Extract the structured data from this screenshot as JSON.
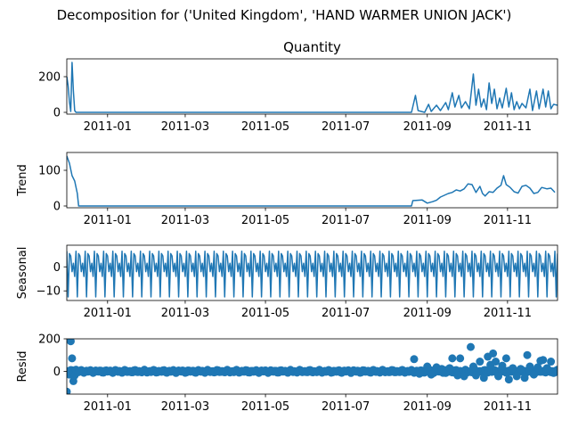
{
  "chart_data": {
    "type": "line",
    "suptitle": "Decomposition for ('United Kingdom', 'HAND WARMER UNION JACK')",
    "series_color": "#1f77b4",
    "x_range": [
      "2010-12-01",
      "2011-12-09"
    ],
    "x_ticks": [
      "2011-01",
      "2011-03",
      "2011-05",
      "2011-07",
      "2011-09",
      "2011-11"
    ],
    "panels": [
      {
        "id": "observed",
        "title": "Quantity",
        "ylabel": "",
        "kind": "line",
        "ylim": [
          -10,
          300
        ],
        "yticks": [
          0,
          200
        ],
        "points": [
          [
            "2010-12-01",
            200
          ],
          [
            "2010-12-02",
            150
          ],
          [
            "2010-12-03",
            60
          ],
          [
            "2010-12-04",
            5
          ],
          [
            "2010-12-05",
            280
          ],
          [
            "2010-12-06",
            120
          ],
          [
            "2010-12-07",
            10
          ],
          [
            "2010-12-08",
            0
          ],
          [
            "2010-12-15",
            0
          ],
          [
            "2011-01-01",
            0
          ],
          [
            "2011-03-01",
            0
          ],
          [
            "2011-05-01",
            0
          ],
          [
            "2011-07-01",
            0
          ],
          [
            "2011-08-20",
            0
          ],
          [
            "2011-08-23",
            95
          ],
          [
            "2011-08-25",
            10
          ],
          [
            "2011-08-30",
            0
          ],
          [
            "2011-09-02",
            45
          ],
          [
            "2011-09-04",
            5
          ],
          [
            "2011-09-08",
            40
          ],
          [
            "2011-09-11",
            10
          ],
          [
            "2011-09-15",
            55
          ],
          [
            "2011-09-17",
            15
          ],
          [
            "2011-09-20",
            110
          ],
          [
            "2011-09-22",
            30
          ],
          [
            "2011-09-25",
            95
          ],
          [
            "2011-09-27",
            25
          ],
          [
            "2011-09-30",
            60
          ],
          [
            "2011-10-03",
            20
          ],
          [
            "2011-10-06",
            215
          ],
          [
            "2011-10-08",
            40
          ],
          [
            "2011-10-10",
            130
          ],
          [
            "2011-10-12",
            30
          ],
          [
            "2011-10-14",
            75
          ],
          [
            "2011-10-16",
            15
          ],
          [
            "2011-10-18",
            165
          ],
          [
            "2011-10-20",
            50
          ],
          [
            "2011-10-22",
            130
          ],
          [
            "2011-10-24",
            20
          ],
          [
            "2011-10-26",
            80
          ],
          [
            "2011-10-28",
            25
          ],
          [
            "2011-10-31",
            135
          ],
          [
            "2011-11-02",
            30
          ],
          [
            "2011-11-04",
            110
          ],
          [
            "2011-11-06",
            15
          ],
          [
            "2011-11-08",
            60
          ],
          [
            "2011-11-10",
            20
          ],
          [
            "2011-11-12",
            50
          ],
          [
            "2011-11-15",
            25
          ],
          [
            "2011-11-18",
            130
          ],
          [
            "2011-11-20",
            10
          ],
          [
            "2011-11-23",
            120
          ],
          [
            "2011-11-25",
            20
          ],
          [
            "2011-11-28",
            130
          ],
          [
            "2011-11-30",
            30
          ],
          [
            "2011-12-02",
            120
          ],
          [
            "2011-12-04",
            20
          ],
          [
            "2011-12-06",
            45
          ],
          [
            "2011-12-09",
            40
          ]
        ]
      },
      {
        "id": "trend",
        "title": "",
        "ylabel": "Trend",
        "kind": "line",
        "ylim": [
          -5,
          150
        ],
        "yticks": [
          0,
          100
        ],
        "points": [
          [
            "2010-12-01",
            140
          ],
          [
            "2010-12-03",
            120
          ],
          [
            "2010-12-05",
            85
          ],
          [
            "2010-12-07",
            70
          ],
          [
            "2010-12-09",
            35
          ],
          [
            "2010-12-10",
            0
          ],
          [
            "2011-01-01",
            0
          ],
          [
            "2011-05-01",
            0
          ],
          [
            "2011-08-20",
            0
          ],
          [
            "2011-08-21",
            15
          ],
          [
            "2011-08-28",
            17
          ],
          [
            "2011-09-01",
            8
          ],
          [
            "2011-09-05",
            12
          ],
          [
            "2011-09-08",
            16
          ],
          [
            "2011-09-11",
            25
          ],
          [
            "2011-09-14",
            30
          ],
          [
            "2011-09-17",
            35
          ],
          [
            "2011-09-20",
            38
          ],
          [
            "2011-09-23",
            45
          ],
          [
            "2011-09-26",
            42
          ],
          [
            "2011-09-29",
            48
          ],
          [
            "2011-10-02",
            62
          ],
          [
            "2011-10-05",
            60
          ],
          [
            "2011-10-08",
            38
          ],
          [
            "2011-10-11",
            55
          ],
          [
            "2011-10-13",
            35
          ],
          [
            "2011-10-15",
            28
          ],
          [
            "2011-10-18",
            40
          ],
          [
            "2011-10-21",
            38
          ],
          [
            "2011-10-24",
            50
          ],
          [
            "2011-10-27",
            58
          ],
          [
            "2011-10-29",
            85
          ],
          [
            "2011-10-31",
            60
          ],
          [
            "2011-11-03",
            52
          ],
          [
            "2011-11-06",
            40
          ],
          [
            "2011-11-09",
            36
          ],
          [
            "2011-11-12",
            55
          ],
          [
            "2011-11-15",
            58
          ],
          [
            "2011-11-18",
            50
          ],
          [
            "2011-11-21",
            35
          ],
          [
            "2011-11-24",
            38
          ],
          [
            "2011-11-27",
            52
          ],
          [
            "2011-12-01",
            48
          ],
          [
            "2011-12-04",
            50
          ],
          [
            "2011-12-07",
            38
          ]
        ]
      },
      {
        "id": "seasonal",
        "title": "",
        "ylabel": "Seasonal",
        "kind": "periodic",
        "ylim": [
          -14,
          9
        ],
        "yticks": [
          -10,
          0
        ],
        "period_days": 7,
        "pattern": [
          6.5,
          -12.5,
          5.5,
          4.5,
          -2.0,
          1.5,
          -4.0
        ]
      },
      {
        "id": "resid",
        "title": "",
        "ylabel": "Resid",
        "kind": "scatter",
        "ylim": [
          -140,
          200
        ],
        "yticks": [
          0,
          200
        ],
        "points": [
          [
            "2010-12-01",
            -125
          ],
          [
            "2010-12-03",
            -20
          ],
          [
            "2010-12-04",
            185
          ],
          [
            "2010-12-05",
            80
          ],
          [
            "2010-12-06",
            -60
          ],
          [
            "2010-12-07",
            -25
          ],
          [
            "2010-12-08",
            10
          ],
          [
            "2010-12-10",
            -5
          ],
          [
            "2011-08-22",
            75
          ],
          [
            "2011-08-26",
            -15
          ],
          [
            "2011-09-01",
            30
          ],
          [
            "2011-09-04",
            -20
          ],
          [
            "2011-09-08",
            25
          ],
          [
            "2011-09-12",
            15
          ],
          [
            "2011-09-15",
            -10
          ],
          [
            "2011-09-18",
            20
          ],
          [
            "2011-09-20",
            80
          ],
          [
            "2011-09-24",
            -25
          ],
          [
            "2011-09-26",
            80
          ],
          [
            "2011-09-29",
            -30
          ],
          [
            "2011-10-04",
            150
          ],
          [
            "2011-10-06",
            30
          ],
          [
            "2011-10-08",
            -25
          ],
          [
            "2011-10-11",
            60
          ],
          [
            "2011-10-14",
            -40
          ],
          [
            "2011-10-17",
            90
          ],
          [
            "2011-10-19",
            40
          ],
          [
            "2011-10-21",
            110
          ],
          [
            "2011-10-23",
            60
          ],
          [
            "2011-10-25",
            -30
          ],
          [
            "2011-10-28",
            35
          ],
          [
            "2011-10-31",
            80
          ],
          [
            "2011-11-02",
            -50
          ],
          [
            "2011-11-05",
            20
          ],
          [
            "2011-11-08",
            -30
          ],
          [
            "2011-11-11",
            15
          ],
          [
            "2011-11-14",
            -40
          ],
          [
            "2011-11-16",
            100
          ],
          [
            "2011-11-18",
            30
          ],
          [
            "2011-11-21",
            -20
          ],
          [
            "2011-11-24",
            25
          ],
          [
            "2011-11-26",
            65
          ],
          [
            "2011-11-28",
            70
          ],
          [
            "2011-12-01",
            20
          ],
          [
            "2011-12-04",
            60
          ],
          [
            "2011-12-06",
            -10
          ],
          [
            "2011-12-08",
            5
          ]
        ]
      }
    ]
  }
}
